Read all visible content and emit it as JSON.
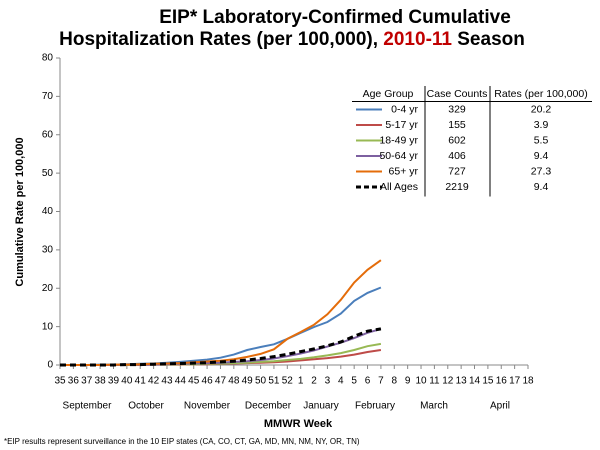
{
  "chart_data": {
    "type": "line",
    "title": [
      "EIP* Laboratory-Confirmed Cumulative",
      "Hospitalization Rates (per 100,000), ",
      "2010-11",
      " Season"
    ],
    "title_highlight_color": "#c00000",
    "y_label": "Cumulative Rate per 100,000",
    "x_label": "MMWR Week",
    "footnote": "*EIP results represent surveillance in the 10 EIP states (CA, CO, CT, GA, MD, MN, NM, NY, OR, TN)",
    "categories": [
      "35",
      "36",
      "37",
      "38",
      "39",
      "40",
      "41",
      "42",
      "43",
      "44",
      "45",
      "46",
      "47",
      "48",
      "49",
      "50",
      "51",
      "52",
      "1",
      "2",
      "3",
      "4",
      "5",
      "6",
      "7",
      "8",
      "9",
      "10",
      "11",
      "12",
      "13",
      "14",
      "15",
      "16",
      "17",
      "18"
    ],
    "months": [
      "September",
      "October",
      "November",
      "December",
      "January",
      "February",
      "March",
      "April"
    ],
    "ylim": [
      0,
      80
    ],
    "yticks": [
      0,
      10,
      20,
      30,
      40,
      50,
      60,
      70,
      80
    ],
    "legend_headers": [
      "Age Group",
      "Case Counts",
      "Rates (per 100,000)"
    ],
    "series": [
      {
        "name": "0-4 yr",
        "color": "#4a7ebb",
        "case_count": 329,
        "rate": 20.2,
        "values": [
          0,
          0,
          0,
          0.1,
          0.1,
          0.2,
          0.3,
          0.4,
          0.6,
          0.8,
          1.1,
          1.4,
          1.9,
          2.7,
          3.9,
          4.7,
          5.4,
          6.8,
          8.4,
          9.9,
          11.2,
          13.4,
          16.7,
          18.8,
          20.2,
          null,
          null,
          null,
          null,
          null,
          null,
          null,
          null,
          null,
          null,
          null
        ]
      },
      {
        "name": "5-17 yr",
        "color": "#be4b48",
        "case_count": 155,
        "rate": 3.9,
        "values": [
          0,
          0,
          0,
          0,
          0,
          0,
          0,
          0.1,
          0.1,
          0.1,
          0.2,
          0.2,
          0.3,
          0.4,
          0.5,
          0.6,
          0.7,
          0.9,
          1.2,
          1.5,
          1.8,
          2.2,
          2.7,
          3.4,
          3.9,
          null,
          null,
          null,
          null,
          null,
          null,
          null,
          null,
          null,
          null,
          null
        ]
      },
      {
        "name": "18-49 yr",
        "color": "#98b954",
        "case_count": 602,
        "rate": 5.5,
        "values": [
          0,
          0,
          0,
          0,
          0,
          0,
          0.1,
          0.1,
          0.1,
          0.2,
          0.2,
          0.3,
          0.4,
          0.5,
          0.6,
          0.8,
          1.0,
          1.3,
          1.6,
          2.0,
          2.5,
          3.1,
          3.9,
          4.9,
          5.5,
          null,
          null,
          null,
          null,
          null,
          null,
          null,
          null,
          null,
          null,
          null
        ]
      },
      {
        "name": "50-64 yr",
        "color": "#7d60a0",
        "case_count": 406,
        "rate": 9.4,
        "values": [
          0,
          0,
          0,
          0,
          0,
          0.1,
          0.1,
          0.1,
          0.2,
          0.3,
          0.4,
          0.5,
          0.6,
          0.8,
          1.0,
          1.3,
          1.7,
          2.3,
          3.0,
          3.8,
          4.8,
          5.8,
          7.0,
          8.4,
          9.4,
          null,
          null,
          null,
          null,
          null,
          null,
          null,
          null,
          null,
          null,
          null
        ]
      },
      {
        "name": "65+ yr",
        "color": "#e46c0a",
        "case_count": 727,
        "rate": 27.3,
        "values": [
          0,
          0,
          0,
          0,
          0.1,
          0.1,
          0.2,
          0.3,
          0.4,
          0.5,
          0.7,
          0.9,
          1.1,
          1.5,
          2.1,
          2.9,
          4.1,
          6.8,
          8.6,
          10.5,
          13.2,
          17.0,
          21.5,
          24.8,
          27.3,
          null,
          null,
          null,
          null,
          null,
          null,
          null,
          null,
          null,
          null,
          null
        ]
      },
      {
        "name": "All Ages",
        "color": "#000000",
        "dashed": true,
        "case_count": 2219,
        "rate": 9.4,
        "values": [
          0,
          0,
          0,
          0,
          0,
          0.1,
          0.1,
          0.2,
          0.3,
          0.4,
          0.5,
          0.6,
          0.8,
          1.0,
          1.3,
          1.7,
          2.2,
          2.8,
          3.5,
          4.2,
          5.0,
          6.0,
          7.5,
          8.8,
          9.4,
          null,
          null,
          null,
          null,
          null,
          null,
          null,
          null,
          null,
          null,
          null
        ]
      }
    ]
  }
}
